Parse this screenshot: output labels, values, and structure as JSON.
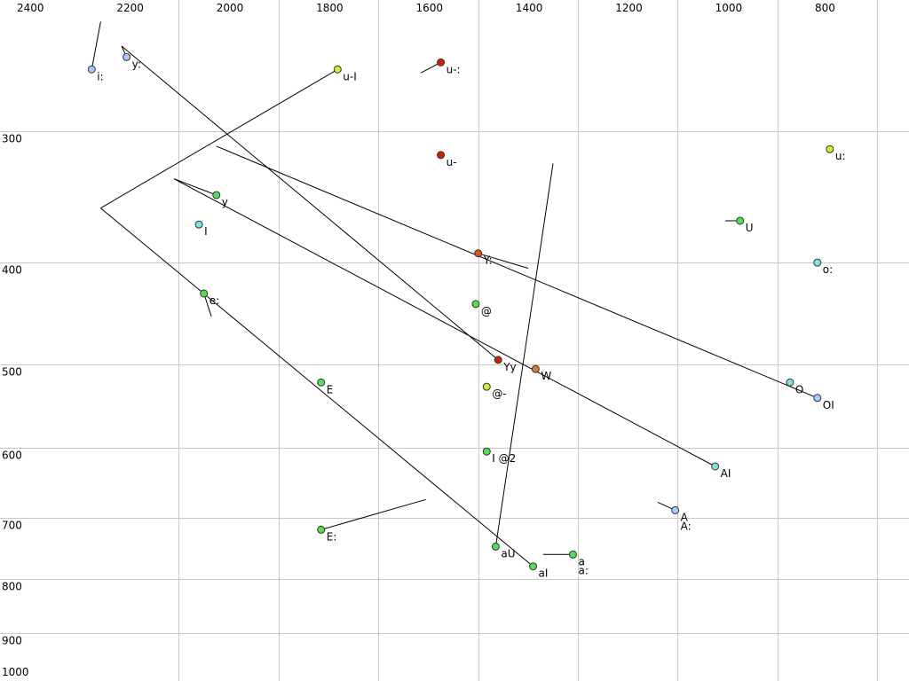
{
  "chart_data": {
    "type": "scatter",
    "title": "",
    "xlabel": "",
    "ylabel": "",
    "x_axis": {
      "reversed": true,
      "ticks": [
        2400,
        2200,
        2000,
        1800,
        1600,
        1400,
        1200,
        1000,
        800
      ],
      "tick_position": "top"
    },
    "y_axis": {
      "scale": "log",
      "ticks": [
        300,
        400,
        500,
        600,
        700,
        800,
        900,
        1000
      ],
      "tick_position": "left"
    },
    "grid": true,
    "colors": {
      "blue": "#a8c8ff",
      "cyan": "#7fe0e0",
      "green": "#55dd55",
      "lime": "#ccee33",
      "orange": "#e07a20",
      "red": "#cc2200",
      "redorange": "#e05020"
    },
    "points": [
      {
        "label": "i:",
        "f2": 2250,
        "f1": 262,
        "color": "blue",
        "traj": [
          [
            2232,
            236
          ]
        ]
      },
      {
        "label": "y:",
        "f2": 2180,
        "f1": 255,
        "color": "blue",
        "traj": [
          [
            2190,
            249
          ],
          [
            1435,
            495
          ]
        ]
      },
      {
        "label": "u-I",
        "f2": 1757,
        "f1": 262,
        "color": "lime",
        "traj": [
          [
            2232,
            355
          ]
        ]
      },
      {
        "label": "u-:",
        "f2": 1550,
        "f1": 258,
        "color": "red",
        "traj": [
          [
            1590,
            264
          ]
        ]
      },
      {
        "label": "u-",
        "f2": 1550,
        "f1": 316,
        "color": "red",
        "traj": []
      },
      {
        "label": "y",
        "f2": 2000,
        "f1": 345,
        "color": "green",
        "traj": [
          [
            2085,
            333
          ],
          [
            1000,
            625
          ]
        ]
      },
      {
        "label": "I",
        "f2": 2035,
        "f1": 368,
        "color": "cyan",
        "traj": []
      },
      {
        "label": "e:",
        "f2": 2025,
        "f1": 428,
        "color": "green",
        "traj": [
          [
            2010,
            450
          ]
        ]
      },
      {
        "label": "Y:",
        "f2": 1475,
        "f1": 392,
        "color": "redorange",
        "traj": [
          [
            1375,
            405
          ]
        ]
      },
      {
        "label": "@",
        "f2": 1480,
        "f1": 438,
        "color": "green",
        "traj": []
      },
      {
        "label": "Yy",
        "f2": 1435,
        "f1": 495,
        "color": "red",
        "traj": []
      },
      {
        "label": "W",
        "f2": 1360,
        "f1": 505,
        "color": "orange",
        "traj": []
      },
      {
        "label": "@-",
        "f2": 1458,
        "f1": 525,
        "color": "lime",
        "traj": []
      },
      {
        "label": "E",
        "f2": 1790,
        "f1": 520,
        "color": "green",
        "traj": []
      },
      {
        "label": "I @2",
        "f2": 1458,
        "f1": 605,
        "color": "green",
        "traj": []
      },
      {
        "label": "u:",
        "f2": 770,
        "f1": 312,
        "color": "lime",
        "traj": []
      },
      {
        "label": "U",
        "f2": 950,
        "f1": 365,
        "color": "green",
        "traj": [
          [
            980,
            365
          ]
        ]
      },
      {
        "label": "o:",
        "f2": 795,
        "f1": 400,
        "color": "cyan",
        "traj": []
      },
      {
        "label": "O",
        "f2": 850,
        "f1": 520,
        "color": "cyan",
        "traj": []
      },
      {
        "label": "OI",
        "f2": 795,
        "f1": 538,
        "color": "blue",
        "traj": [
          [
            2000,
            310
          ]
        ]
      },
      {
        "label": "AI",
        "f2": 1000,
        "f1": 625,
        "color": "cyan",
        "traj": []
      },
      {
        "label": "A\nA:",
        "f2": 1080,
        "f1": 688,
        "color": "blue",
        "traj": [
          [
            1115,
            676
          ]
        ]
      },
      {
        "label": "E:",
        "f2": 1790,
        "f1": 718,
        "color": "green",
        "traj": [
          [
            1580,
            672
          ]
        ]
      },
      {
        "label": "aU",
        "f2": 1440,
        "f1": 745,
        "color": "green",
        "traj": [
          [
            1325,
            322
          ]
        ]
      },
      {
        "label": "aI",
        "f2": 1365,
        "f1": 778,
        "color": "green",
        "traj": [
          [
            2232,
            355
          ]
        ]
      },
      {
        "label": "a\na:",
        "f2": 1285,
        "f1": 758,
        "color": "green",
        "traj": [
          [
            1345,
            758
          ]
        ]
      }
    ]
  }
}
